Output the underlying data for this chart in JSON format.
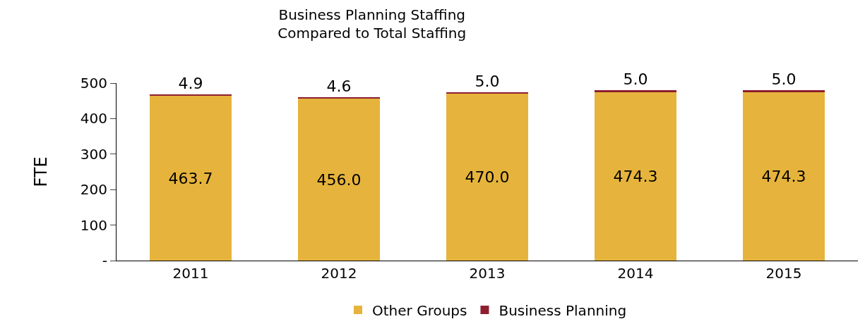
{
  "chart_data": {
    "type": "bar",
    "title": "Business Planning Staffing\nCompared to Total Staffing",
    "ylabel": "FTE",
    "categories": [
      "2011",
      "2012",
      "2013",
      "2014",
      "2015"
    ],
    "series": [
      {
        "name": "Other Groups",
        "color": "#e6b43c",
        "values": [
          463.7,
          456.0,
          470.0,
          474.3,
          474.3
        ],
        "value_labels": [
          "463.7",
          "456.0",
          "470.0",
          "474.3",
          "474.3"
        ]
      },
      {
        "name": "Business Planning",
        "color": "#8e1f30",
        "values": [
          4.9,
          4.6,
          5.0,
          5.0,
          5.0
        ],
        "value_labels": [
          "4.9",
          "4.6",
          "5.0",
          "5.0",
          "5.0"
        ]
      }
    ],
    "stacked": true,
    "legend": "bottom",
    "ylim": [
      0,
      500
    ],
    "yticks": [
      {
        "value": 0,
        "label": "-"
      },
      100,
      200,
      300,
      400,
      500
    ]
  }
}
